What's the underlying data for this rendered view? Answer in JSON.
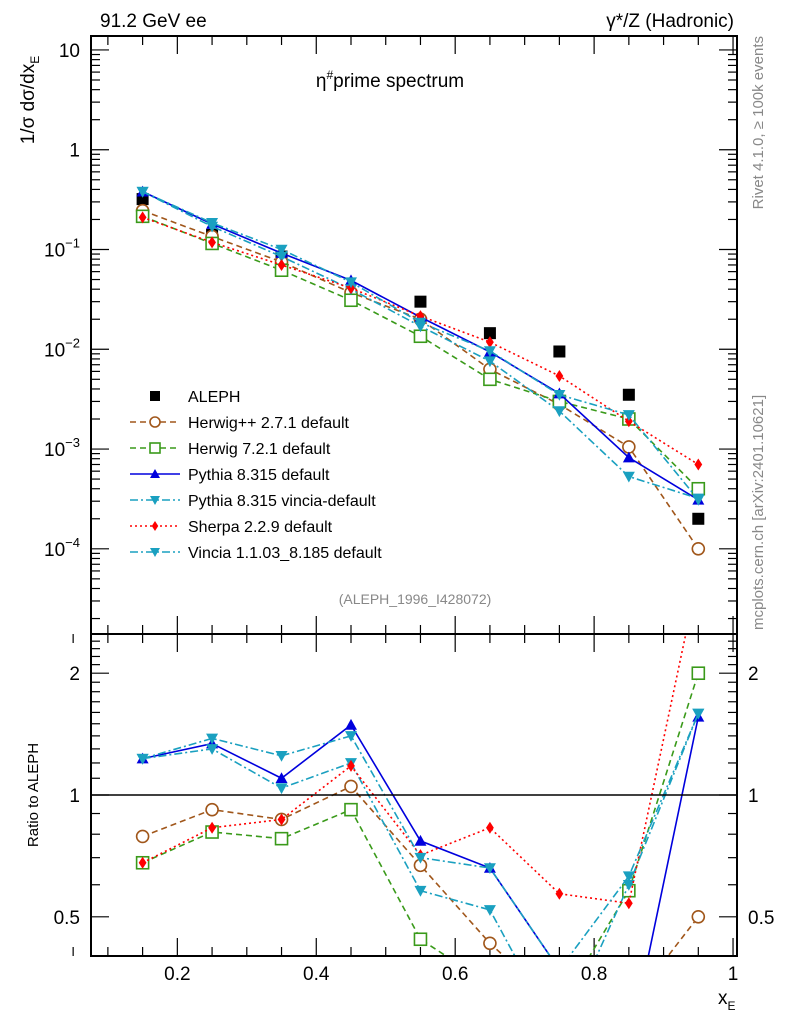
{
  "chart_data": [
    {
      "type": "line",
      "panel": "main",
      "title": "η#prime spectrum",
      "header_left": "91.2 GeV ee",
      "header_right": "γ*/Z (Hadronic)",
      "ylabel": "1/σ  dσ/dx_E",
      "yscale": "log",
      "ylim": [
        1.4e-05,
        13.8
      ],
      "xlim": [
        0.0757,
        1.0057
      ],
      "yticks": [
        {
          "value": 10,
          "label": "10"
        },
        {
          "value": 1,
          "label": "1"
        },
        {
          "value": 0.1,
          "label": "10^-1"
        },
        {
          "value": 0.01,
          "label": "10^-2"
        },
        {
          "value": 0.001,
          "label": "10^-3"
        },
        {
          "value": 0.0001,
          "label": "10^-4"
        }
      ],
      "analysis_tag": "(ALEPH_1996_I428072)",
      "side_label_top": "Rivet 4.1.0, ≥ 100k events",
      "side_label_bottom": "mcplots.cern.ch [arXiv:2401.10621]",
      "x": [
        0.15,
        0.25,
        0.35,
        0.45,
        0.55,
        0.65,
        0.75,
        0.85,
        0.95
      ],
      "legend_position": "bottom-left",
      "series": [
        {
          "name": "ALEPH",
          "color": "#000000",
          "marker": "square-filled",
          "dash": "none",
          "values": [
            0.32,
            0.14,
            0.085,
            0.035,
            0.03,
            0.0145,
            0.0095,
            0.0035,
            0.0002
          ]
        },
        {
          "name": "Herwig++ 2.7.1 default",
          "color": "#a0561a",
          "marker": "circle-open",
          "dash": "6,4",
          "values": [
            0.245,
            0.135,
            0.075,
            0.037,
            0.02,
            0.0063,
            0.0028,
            0.00105,
            0.0001
          ]
        },
        {
          "name": "Herwig 7.2.1 default",
          "color": "#3a9a1a",
          "marker": "square-open",
          "dash": "6,4",
          "values": [
            0.215,
            0.115,
            0.062,
            0.031,
            0.0135,
            0.005,
            0.003,
            0.002,
            0.0004
          ]
        },
        {
          "name": "Pythia 8.315 default",
          "color": "#0000dd",
          "marker": "triangle-up",
          "dash": "none",
          "values": [
            0.38,
            0.18,
            0.092,
            0.049,
            0.021,
            0.0094,
            0.0036,
            0.00082,
            0.00031
          ]
        },
        {
          "name": "Pythia 8.315 vincia-default",
          "color": "#1aa0c0",
          "marker": "triangle-down",
          "dash": "8,3,2,3",
          "values": [
            0.38,
            0.17,
            0.085,
            0.04,
            0.017,
            0.0076,
            0.0024,
            0.00053,
            0.00032
          ]
        },
        {
          "name": "Sherpa 2.2.9 default",
          "color": "#ff0000",
          "marker": "diamond",
          "dash": "2,3",
          "values": [
            0.21,
            0.118,
            0.07,
            0.041,
            0.0215,
            0.0118,
            0.0054,
            0.0019,
            0.0007
          ]
        },
        {
          "name": "Vincia 1.1.03_8.185 default",
          "color": "#1aa0c0",
          "marker": "triangle-down",
          "dash": "8,3,2,3",
          "values": [
            0.38,
            0.185,
            0.1,
            0.047,
            0.0185,
            0.0096,
            0.0035,
            0.0022,
            0.00031
          ]
        }
      ]
    },
    {
      "type": "line",
      "panel": "ratio",
      "ylabel": "Ratio to ALEPH",
      "xlabel": "x_E",
      "yscale": "log",
      "ylim": [
        0.4,
        2.5
      ],
      "xlim": [
        0.0757,
        1.0057
      ],
      "yticks": [
        {
          "value": 2,
          "label": "2"
        },
        {
          "value": 1,
          "label": "1"
        },
        {
          "value": 0.5,
          "label": "0.5"
        }
      ],
      "xticks": [
        {
          "value": 0.2,
          "label": "0.2"
        },
        {
          "value": 0.4,
          "label": "0.4"
        },
        {
          "value": 0.6,
          "label": "0.6"
        },
        {
          "value": 0.8,
          "label": "0.8"
        },
        {
          "value": 1.0,
          "label": "1"
        }
      ],
      "x": [
        0.15,
        0.25,
        0.35,
        0.45,
        0.55,
        0.65,
        0.75,
        0.85,
        0.95
      ],
      "series": [
        {
          "name": "Herwig++ 2.7.1 default",
          "color": "#a0561a",
          "marker": "circle-open",
          "dash": "6,4",
          "values": [
            0.79,
            0.92,
            0.87,
            1.05,
            0.67,
            0.43,
            0.3,
            0.3,
            0.5
          ]
        },
        {
          "name": "Herwig 7.2.1 default",
          "color": "#3a9a1a",
          "marker": "square-open",
          "dash": "6,4",
          "values": [
            0.68,
            0.81,
            0.78,
            0.92,
            0.44,
            0.34,
            0.3,
            0.58,
            2.0
          ]
        },
        {
          "name": "Pythia 8.315 default",
          "color": "#0000dd",
          "marker": "triangle-up",
          "dash": "none",
          "values": [
            1.23,
            1.34,
            1.1,
            1.49,
            0.77,
            0.66,
            0.37,
            0.235,
            1.56
          ]
        },
        {
          "name": "Pythia 8.315 vincia-default",
          "color": "#1aa0c0",
          "marker": "triangle-down",
          "dash": "8,3,2,3",
          "values": [
            1.23,
            1.3,
            1.04,
            1.2,
            0.58,
            0.52,
            0.25,
            0.6,
            1.59
          ]
        },
        {
          "name": "Sherpa 2.2.9 default",
          "color": "#ff0000",
          "marker": "diamond",
          "dash": "2,3",
          "values": [
            0.68,
            0.83,
            0.87,
            1.18,
            0.71,
            0.83,
            0.57,
            0.54,
            3.5
          ]
        },
        {
          "name": "Vincia 1.1.03_8.185 default",
          "color": "#1aa0c0",
          "marker": "triangle-down",
          "dash": "8,3,2,3",
          "values": [
            1.23,
            1.38,
            1.25,
            1.4,
            0.7,
            0.66,
            0.37,
            0.63,
            1.59
          ]
        }
      ]
    }
  ]
}
